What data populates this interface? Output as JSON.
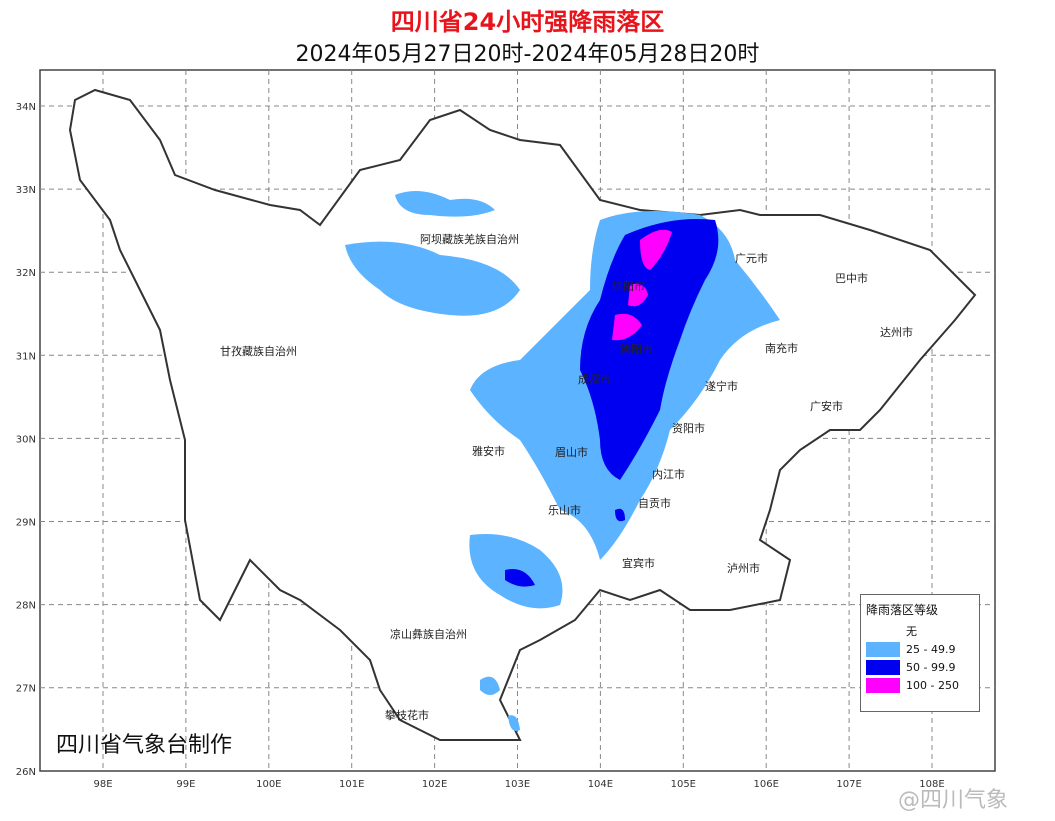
{
  "title": "四川省24小时强降雨落区",
  "subtitle": "2024年05月27日20时-2024年05月28日20时",
  "axes": {
    "x_ticks": [
      "98E",
      "99E",
      "100E",
      "101E",
      "102E",
      "103E",
      "104E",
      "105E",
      "106E",
      "107E",
      "108E"
    ],
    "y_ticks": [
      "34N",
      "33N",
      "32N",
      "31N",
      "30N",
      "29N",
      "28N",
      "27N",
      "26N"
    ]
  },
  "regions": [
    "阿坝藏族羌族自治州",
    "甘孜藏族自治州",
    "广元市",
    "巴中市",
    "绵阳市",
    "达州市",
    "德阳市",
    "南充市",
    "成都市",
    "遂宁市",
    "广安市",
    "资阳市",
    "雅安市",
    "眉山市",
    "内江市",
    "乐山市",
    "自贡市",
    "宜宾市",
    "泸州市",
    "凉山彝族自治州",
    "攀枝花市"
  ],
  "legend": {
    "title": "降雨落区等级",
    "items": [
      {
        "label": "无",
        "color": "#ffffff"
      },
      {
        "label": "25 - 49.9",
        "color": "#5cb3ff"
      },
      {
        "label": "50 - 99.9",
        "color": "#0000f0"
      },
      {
        "label": "100 - 250",
        "color": "#ff00ff"
      }
    ]
  },
  "footer": "四川省气象台制作",
  "watermark": "@四川气象"
}
